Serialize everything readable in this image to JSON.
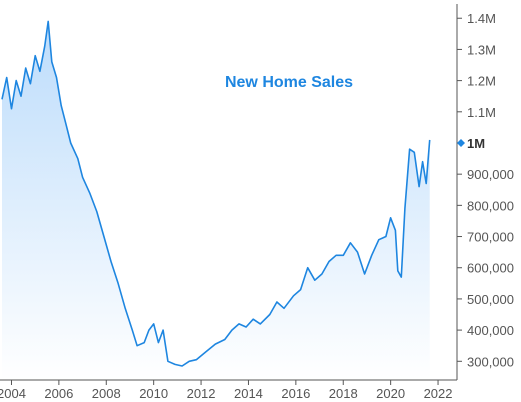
{
  "chart_data": {
    "type": "area",
    "title": "New Home Sales",
    "xlabel": "",
    "ylabel": "",
    "x_ticks": [
      "2004",
      "2006",
      "2008",
      "2010",
      "2012",
      "2014",
      "2016",
      "2018",
      "2020",
      "2022"
    ],
    "y_ticks": [
      "1.4M",
      "1.3M",
      "1.2M",
      "1.1M",
      "1M",
      "900,000",
      "800,000",
      "700,000",
      "600,000",
      "500,000",
      "400,000",
      "300,000"
    ],
    "y_tick_values": [
      1400000,
      1300000,
      1200000,
      1100000,
      1000000,
      900000,
      800000,
      700000,
      600000,
      500000,
      400000,
      300000
    ],
    "current_tick": "1M",
    "xlim": [
      2003.6,
      2022.8
    ],
    "ylim": [
      240000,
      1420000
    ],
    "grid": false,
    "colors": {
      "line": "#1e86e0",
      "fill_top": "#bcdcfb",
      "fill_bottom": "#ffffff",
      "title": "#1e86e0",
      "marker": "#1e86e0",
      "axis": "#555555"
    },
    "series": [
      {
        "values": [
          [
            2003.6,
            1140000
          ],
          [
            2003.8,
            1210000
          ],
          [
            2004.0,
            1110000
          ],
          [
            2004.2,
            1200000
          ],
          [
            2004.4,
            1150000
          ],
          [
            2004.6,
            1240000
          ],
          [
            2004.8,
            1190000
          ],
          [
            2005.0,
            1280000
          ],
          [
            2005.2,
            1230000
          ],
          [
            2005.4,
            1310000
          ],
          [
            2005.55,
            1390000
          ],
          [
            2005.7,
            1260000
          ],
          [
            2005.9,
            1210000
          ],
          [
            2006.1,
            1120000
          ],
          [
            2006.3,
            1060000
          ],
          [
            2006.5,
            1000000
          ],
          [
            2006.8,
            950000
          ],
          [
            2007.0,
            890000
          ],
          [
            2007.3,
            840000
          ],
          [
            2007.6,
            780000
          ],
          [
            2007.9,
            700000
          ],
          [
            2008.2,
            620000
          ],
          [
            2008.5,
            550000
          ],
          [
            2008.8,
            470000
          ],
          [
            2009.1,
            400000
          ],
          [
            2009.3,
            350000
          ],
          [
            2009.6,
            360000
          ],
          [
            2009.8,
            400000
          ],
          [
            2010.0,
            420000
          ],
          [
            2010.2,
            360000
          ],
          [
            2010.4,
            400000
          ],
          [
            2010.6,
            300000
          ],
          [
            2010.9,
            290000
          ],
          [
            2011.2,
            285000
          ],
          [
            2011.5,
            300000
          ],
          [
            2011.8,
            305000
          ],
          [
            2012.2,
            330000
          ],
          [
            2012.6,
            355000
          ],
          [
            2013.0,
            370000
          ],
          [
            2013.3,
            400000
          ],
          [
            2013.6,
            420000
          ],
          [
            2013.9,
            410000
          ],
          [
            2014.2,
            435000
          ],
          [
            2014.5,
            420000
          ],
          [
            2014.9,
            450000
          ],
          [
            2015.2,
            490000
          ],
          [
            2015.5,
            470000
          ],
          [
            2015.9,
            510000
          ],
          [
            2016.2,
            530000
          ],
          [
            2016.5,
            600000
          ],
          [
            2016.8,
            560000
          ],
          [
            2017.1,
            580000
          ],
          [
            2017.4,
            620000
          ],
          [
            2017.7,
            640000
          ],
          [
            2018.0,
            640000
          ],
          [
            2018.3,
            680000
          ],
          [
            2018.6,
            650000
          ],
          [
            2018.9,
            580000
          ],
          [
            2019.2,
            640000
          ],
          [
            2019.5,
            690000
          ],
          [
            2019.8,
            700000
          ],
          [
            2020.0,
            760000
          ],
          [
            2020.2,
            720000
          ],
          [
            2020.3,
            590000
          ],
          [
            2020.45,
            570000
          ],
          [
            2020.6,
            790000
          ],
          [
            2020.8,
            980000
          ],
          [
            2021.0,
            970000
          ],
          [
            2021.2,
            860000
          ],
          [
            2021.35,
            940000
          ],
          [
            2021.5,
            870000
          ],
          [
            2021.65,
            1010000
          ]
        ]
      }
    ]
  }
}
